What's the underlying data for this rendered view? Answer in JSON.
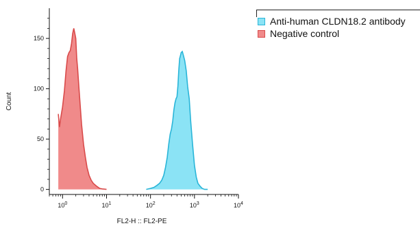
{
  "chart_data": {
    "type": "area",
    "xlabel": "FL2-H :: FL2-PE",
    "ylabel": "Count",
    "xscale": "log",
    "xlim": [
      0.5,
      10000
    ],
    "ylim": [
      -5,
      180
    ],
    "x_ticks": [
      1,
      10,
      100,
      1000,
      10000
    ],
    "x_tick_labels": [
      [
        "10",
        "0"
      ],
      [
        "10",
        "1"
      ],
      [
        "10",
        "2"
      ],
      [
        "10",
        "3"
      ],
      [
        "10",
        "4"
      ]
    ],
    "y_ticks": [
      0,
      50,
      100,
      150
    ],
    "y_tick_labels": [
      "0",
      "50",
      "100",
      "150"
    ],
    "grid": false,
    "legend_position": "top-right, outside plot",
    "series": [
      {
        "name": "Anti-human CLDN18.2 antibody",
        "color": "#29b5d8",
        "fill": "#8be3f5",
        "x": [
          80,
          100,
          120,
          140,
          160,
          180,
          200,
          220,
          240,
          260,
          280,
          300,
          320,
          340,
          360,
          380,
          400,
          420,
          440,
          460,
          480,
          500,
          530,
          560,
          600,
          650,
          700,
          760,
          820,
          900,
          1000,
          1100,
          1200,
          1350,
          1500,
          1700,
          2000
        ],
        "y": [
          0,
          1,
          2,
          4,
          6,
          9,
          14,
          22,
          32,
          45,
          55,
          60,
          68,
          79,
          86,
          90,
          92,
          103,
          118,
          130,
          133,
          136,
          137,
          133,
          128,
          118,
          102,
          90,
          68,
          46,
          24,
          12,
          6,
          3,
          1,
          0,
          0
        ]
      },
      {
        "name": "Negative control",
        "color": "#d94a4a",
        "fill": "#f08a8a",
        "x": [
          0.8,
          0.85,
          0.9,
          1.0,
          1.1,
          1.2,
          1.3,
          1.4,
          1.5,
          1.6,
          1.7,
          1.8,
          1.9,
          2.0,
          2.1,
          2.2,
          2.35,
          2.5,
          2.7,
          3.0,
          3.3,
          3.6,
          4.0,
          4.5,
          5.0,
          6.0,
          7.0,
          8.0,
          10.0
        ],
        "y": [
          75,
          62,
          70,
          82,
          98,
          118,
          132,
          136,
          138,
          145,
          155,
          160,
          155,
          150,
          130,
          120,
          102,
          85,
          65,
          45,
          32,
          22,
          14,
          9,
          6,
          3,
          1,
          0.5,
          0
        ]
      }
    ]
  }
}
